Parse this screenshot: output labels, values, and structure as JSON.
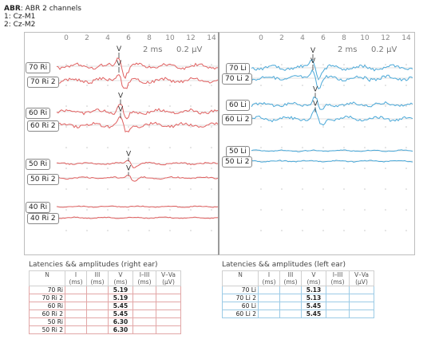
{
  "header": {
    "title_bold": "ABR",
    "title_rest": ": ABR 2 channels",
    "channels": [
      "1: Cz-M1",
      "2: Cz-M2"
    ]
  },
  "axis_ticks": [
    "0",
    "2",
    "4",
    "6",
    "8",
    "10",
    "12",
    "14"
  ],
  "right_panel": {
    "scale_ms": "2 ms",
    "scale_uv": "0.2 µV",
    "color": "#e06060",
    "labels": [
      "70 Ri",
      "70 Ri 2",
      "60 Ri",
      "60 Ri 2",
      "50 Ri",
      "50 Ri 2",
      "40 Ri",
      "40 Ri 2"
    ],
    "markers": [
      "V",
      "V",
      "V",
      "V",
      "V",
      "V"
    ]
  },
  "left_panel": {
    "scale_ms": "2 ms",
    "scale_uv": "0.2 µV",
    "color": "#4aa8d8",
    "labels": [
      "70 Li",
      "70 Li 2",
      "60 Li",
      "60 Li 2",
      "50 Li",
      "50 Li 2"
    ],
    "markers": [
      "V",
      "V",
      "V",
      "V"
    ]
  },
  "table_right": {
    "title": "Latencies && amplitudes (right ear)",
    "columns": [
      [
        "N",
        ""
      ],
      [
        "I",
        "(ms)"
      ],
      [
        "III",
        "(ms)"
      ],
      [
        "V",
        "(ms)"
      ],
      [
        "I–III",
        "(ms)"
      ],
      [
        "V–Va",
        "(µV)"
      ]
    ],
    "rows": [
      [
        "70 Ri",
        "",
        "",
        "5.19",
        "",
        ""
      ],
      [
        "70 Ri 2",
        "",
        "",
        "5.19",
        "",
        ""
      ],
      [
        "60 Ri",
        "",
        "",
        "5.45",
        "",
        ""
      ],
      [
        "60 Ri 2",
        "",
        "",
        "5.45",
        "",
        ""
      ],
      [
        "50 Ri",
        "",
        "",
        "6.30",
        "",
        ""
      ],
      [
        "50 Ri 2",
        "",
        "",
        "6.30",
        "",
        ""
      ]
    ]
  },
  "table_left": {
    "title": "Latencies && amplitudes (left ear)",
    "columns": [
      [
        "N",
        ""
      ],
      [
        "I",
        "(ms)"
      ],
      [
        "III",
        "(ms)"
      ],
      [
        "V",
        "(ms)"
      ],
      [
        "I–III",
        "(ms)"
      ],
      [
        "V–Va",
        "(µV)"
      ]
    ],
    "rows": [
      [
        "70 Li",
        "",
        "",
        "5.13",
        "",
        ""
      ],
      [
        "70 Li 2",
        "",
        "",
        "5.13",
        "",
        ""
      ],
      [
        "60 Li",
        "",
        "",
        "5.45",
        "",
        ""
      ],
      [
        "60 Li 2",
        "",
        "",
        "5.45",
        "",
        ""
      ]
    ]
  }
}
